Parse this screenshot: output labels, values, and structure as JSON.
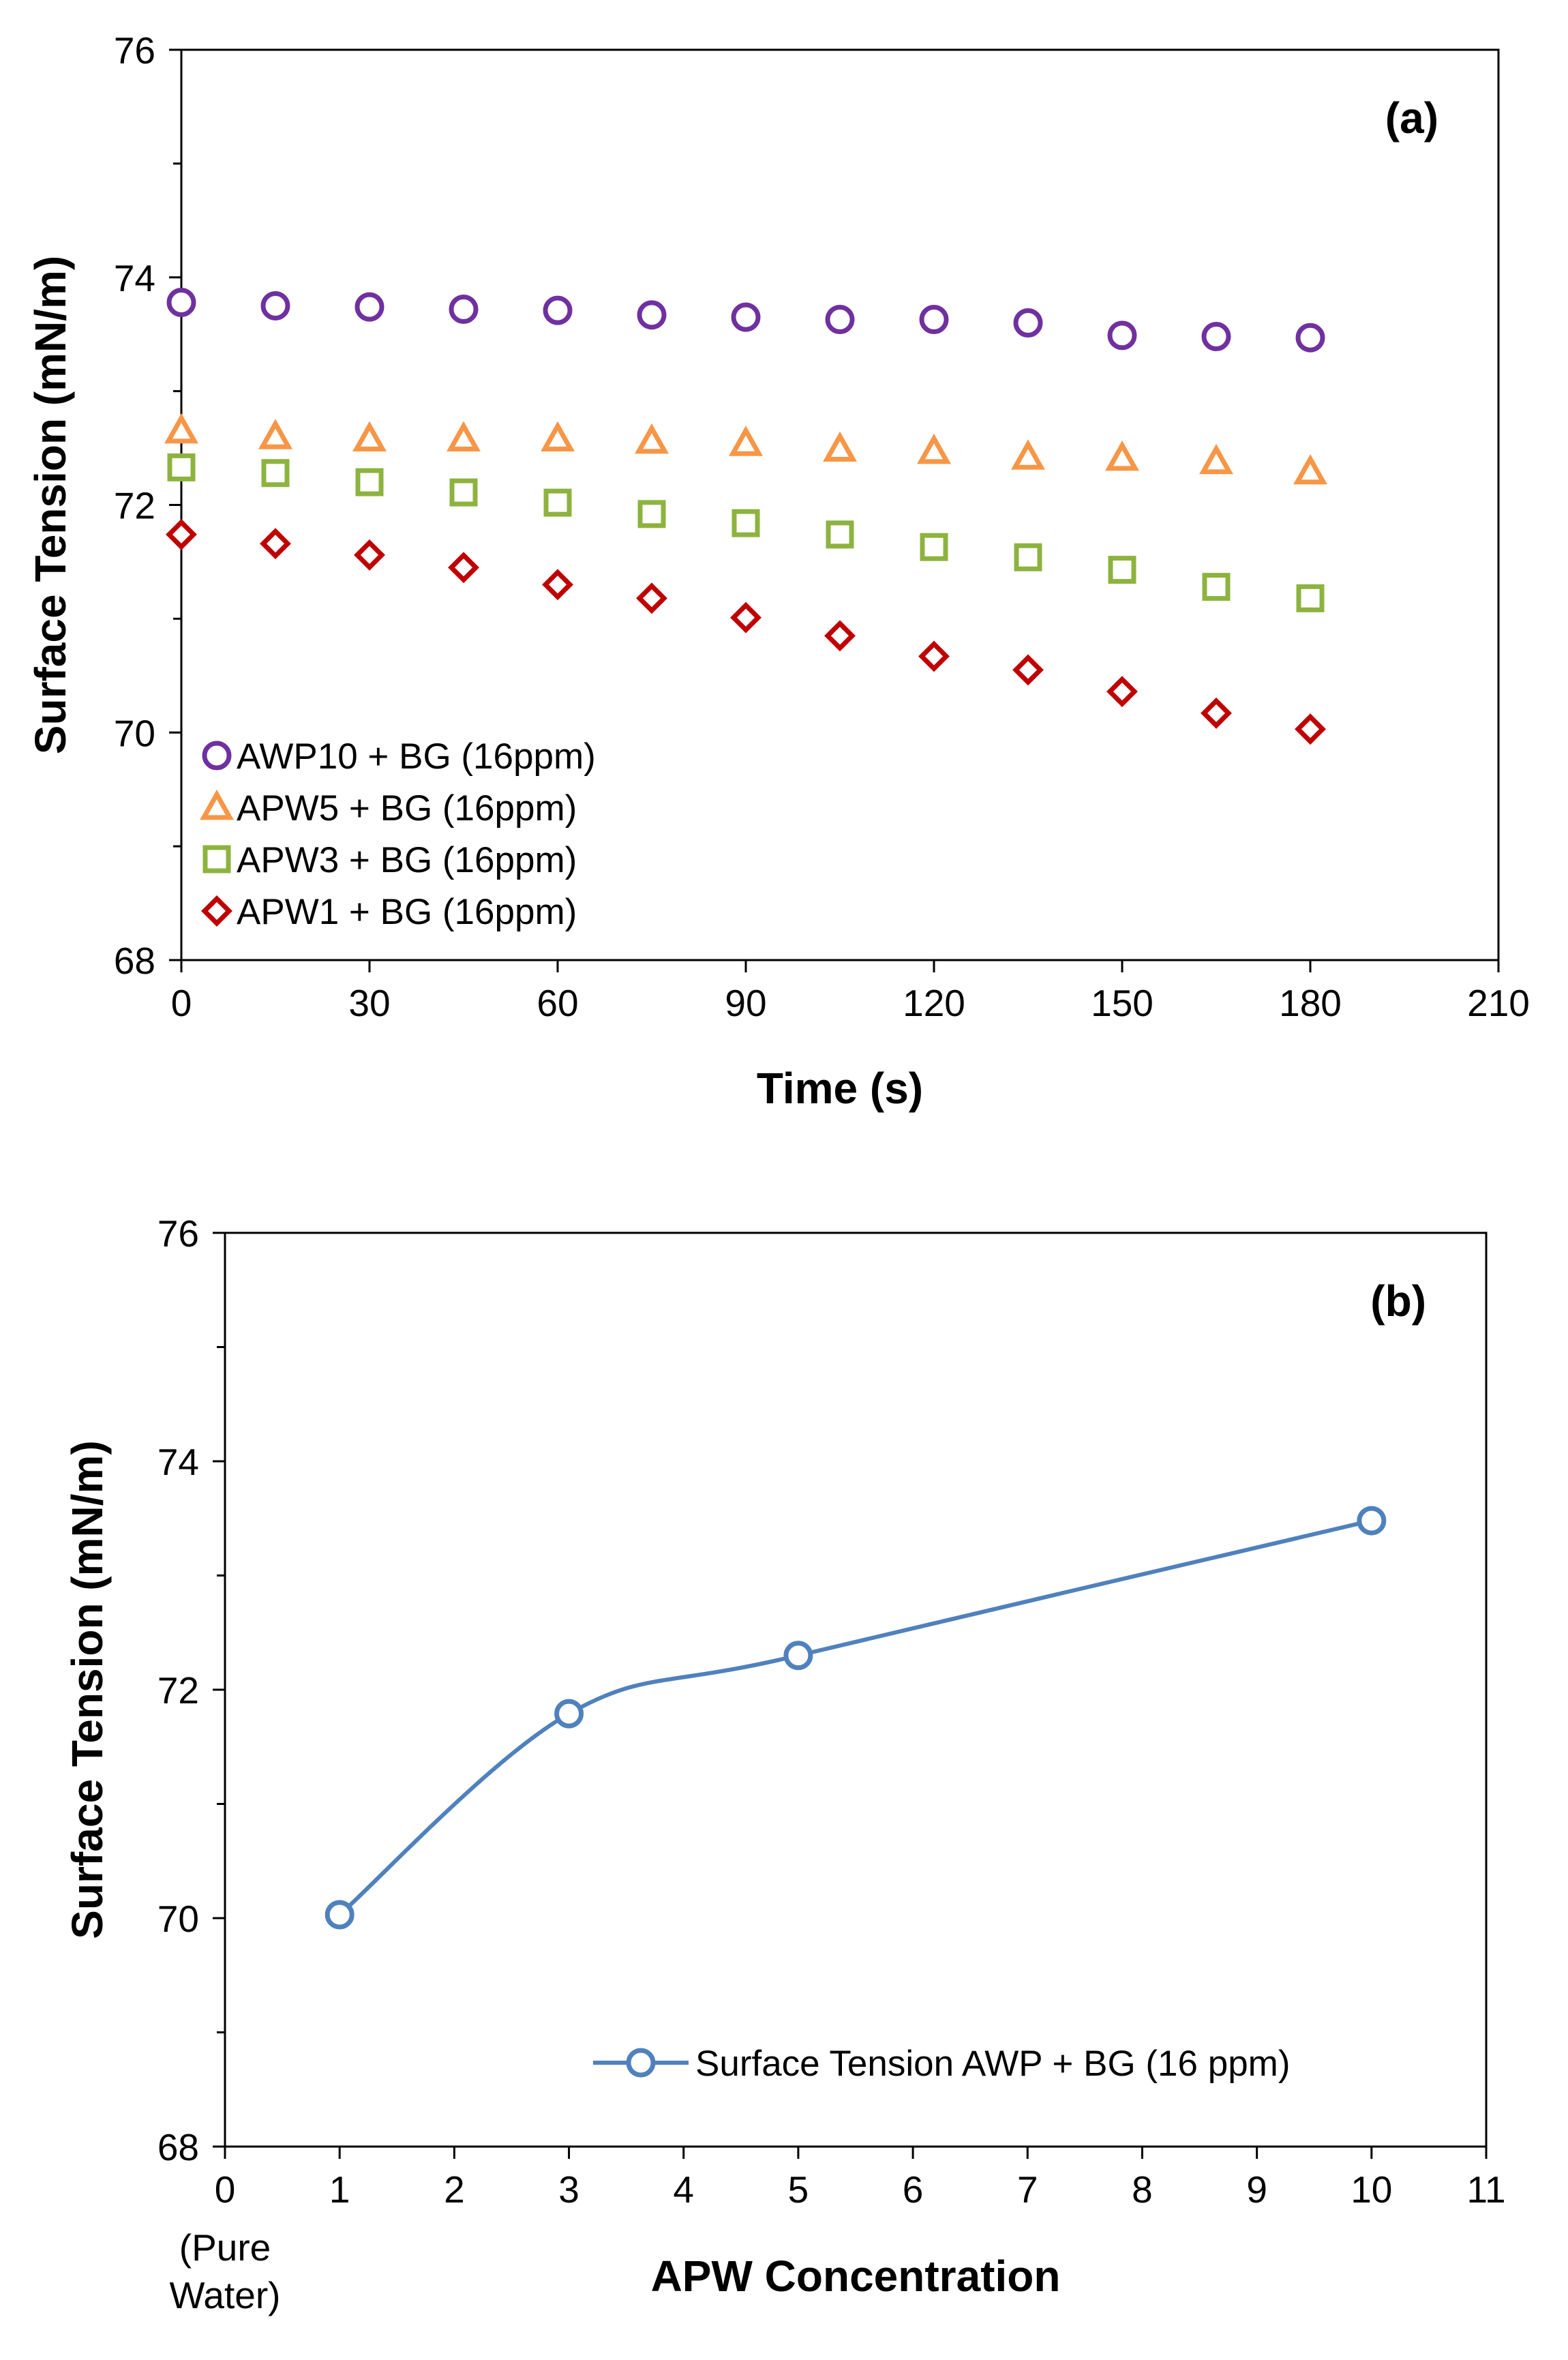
{
  "chart_data": [
    {
      "type": "scatter",
      "panel_label": "(a)",
      "xlabel": "Time (s)",
      "ylabel": "Surface Tension (mN/m)",
      "xlim": [
        0,
        210
      ],
      "ylim": [
        68,
        76
      ],
      "x_ticks": [
        "0",
        "30",
        "60",
        "90",
        "120",
        "150",
        "180",
        "210"
      ],
      "y_ticks": [
        "68",
        "70",
        "72",
        "74",
        "76"
      ],
      "grid": false,
      "legend_position": "bottom-left",
      "x": [
        0,
        15,
        30,
        45,
        60,
        75,
        90,
        105,
        120,
        135,
        150,
        165,
        180
      ],
      "series": [
        {
          "name": "AWP10 + BG (16ppm)",
          "marker": "circle",
          "color": "#7030a0",
          "values": [
            73.78,
            73.75,
            73.74,
            73.72,
            73.71,
            73.67,
            73.65,
            73.63,
            73.63,
            73.6,
            73.49,
            73.48,
            73.47
          ]
        },
        {
          "name": "APW5 + BG (16ppm)",
          "marker": "triangle",
          "color": "#f79646",
          "values": [
            72.65,
            72.6,
            72.58,
            72.58,
            72.58,
            72.56,
            72.54,
            72.49,
            72.47,
            72.42,
            72.41,
            72.38,
            72.29
          ]
        },
        {
          "name": "APW3 + BG (16ppm)",
          "marker": "square",
          "color": "#8db33f",
          "values": [
            72.33,
            72.28,
            72.2,
            72.11,
            72.02,
            71.92,
            71.84,
            71.74,
            71.63,
            71.54,
            71.43,
            71.28,
            71.18
          ]
        },
        {
          "name": "APW1 + BG (16ppm)",
          "marker": "diamond",
          "color": "#c00000",
          "values": [
            71.74,
            71.66,
            71.56,
            71.45,
            71.3,
            71.18,
            71.01,
            70.85,
            70.67,
            70.55,
            70.36,
            70.17,
            70.03
          ]
        }
      ]
    },
    {
      "type": "line",
      "panel_label": "(b)",
      "xlabel": "APW Concentration",
      "ylabel": "Surface Tension (mN/m)",
      "xlim": [
        0,
        11
      ],
      "ylim": [
        68,
        76
      ],
      "x_ticks": [
        "0",
        "1",
        "2",
        "3",
        "4",
        "5",
        "6",
        "7",
        "8",
        "9",
        "10",
        "11"
      ],
      "x_tick_note": [
        "(Pure",
        "Water)"
      ],
      "y_ticks": [
        "68",
        "70",
        "72",
        "74",
        "76"
      ],
      "grid": false,
      "legend_position": "bottom-right",
      "series": [
        {
          "name": "Surface Tension AWP + BG (16 ppm)",
          "marker": "circle",
          "color": "#4f81bd",
          "x": [
            1,
            3,
            5,
            10
          ],
          "values": [
            70.03,
            71.79,
            72.3,
            73.48
          ]
        }
      ]
    }
  ]
}
